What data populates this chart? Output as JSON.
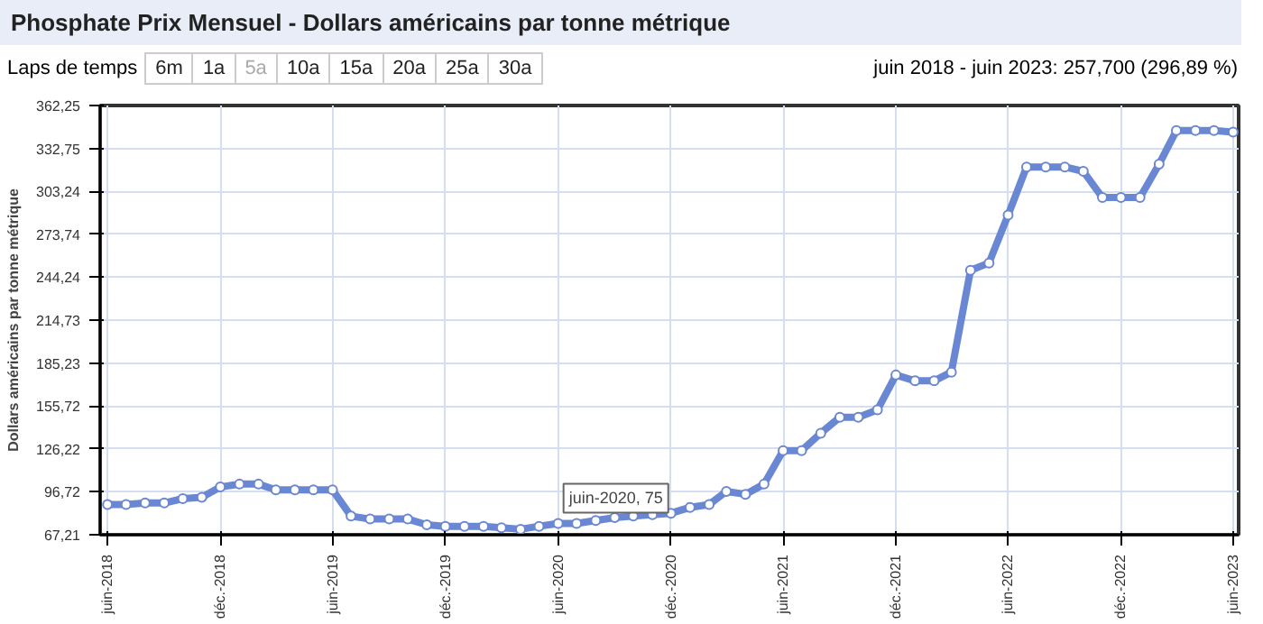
{
  "chart_data": {
    "type": "line",
    "title": "Phosphate Prix Mensuel - Dollars américains par tonne métrique",
    "ylabel": "Dollars américains par tonne métrique",
    "annotations": [
      "Laps de temps",
      "6m",
      "1a",
      "5a",
      "10a",
      "15a",
      "20a",
      "25a",
      "30a",
      "juin 2018 - juin 2023: 257,700 (296,89 %)",
      {
        "text": "juin-2020, 75",
        "x": "2020-06",
        "y": 75
      }
    ],
    "x": [
      "2018-06",
      "2018-07",
      "2018-08",
      "2018-09",
      "2018-10",
      "2018-11",
      "2018-12",
      "2019-01",
      "2019-02",
      "2019-03",
      "2019-04",
      "2019-05",
      "2019-06",
      "2019-07",
      "2019-08",
      "2019-09",
      "2019-10",
      "2019-11",
      "2019-12",
      "2020-01",
      "2020-02",
      "2020-03",
      "2020-04",
      "2020-05",
      "2020-06",
      "2020-07",
      "2020-08",
      "2020-09",
      "2020-10",
      "2020-11",
      "2020-12",
      "2021-01",
      "2021-02",
      "2021-03",
      "2021-04",
      "2021-05",
      "2021-06",
      "2021-07",
      "2021-08",
      "2021-09",
      "2021-10",
      "2021-11",
      "2021-12",
      "2022-01",
      "2022-02",
      "2022-03",
      "2022-04",
      "2022-05",
      "2022-06",
      "2022-07",
      "2022-08",
      "2022-09",
      "2022-10",
      "2022-11",
      "2022-12",
      "2023-01",
      "2023-02",
      "2023-03",
      "2023-04",
      "2023-05",
      "2023-06"
    ],
    "series": [
      {
        "color": "#6a87d3",
        "values": [
          88,
          88,
          89,
          89,
          92,
          93,
          100,
          102,
          102,
          98,
          98,
          98,
          98,
          80,
          78,
          78,
          78,
          74,
          73,
          73,
          73,
          72,
          71,
          73,
          75,
          75,
          77,
          79,
          80,
          81,
          82,
          86,
          88,
          97,
          95,
          102,
          125,
          125,
          137,
          148,
          148,
          153,
          177,
          173,
          173,
          179,
          249,
          254,
          287,
          320,
          320,
          320,
          317,
          299,
          299,
          299,
          322,
          345,
          345,
          345,
          344
        ]
      }
    ],
    "marker": "circle",
    "line_style": "solid",
    "grid": true,
    "xlim": [
      "2018-05-20",
      "2023-06-10"
    ],
    "ylim": [
      67.21,
      362.25
    ],
    "yticks": [
      {
        "value": 67.21,
        "label": "67,21"
      },
      {
        "value": 96.72,
        "label": "96,72"
      },
      {
        "value": 126.22,
        "label": "126,22"
      },
      {
        "value": 155.72,
        "label": "155,72"
      },
      {
        "value": 185.23,
        "label": "185,23"
      },
      {
        "value": 214.73,
        "label": "214,73"
      },
      {
        "value": 244.24,
        "label": "244,24"
      },
      {
        "value": 273.74,
        "label": "273,74"
      },
      {
        "value": 303.24,
        "label": "303,24"
      },
      {
        "value": 332.75,
        "label": "332,75"
      },
      {
        "value": 362.25,
        "label": "362,25"
      }
    ],
    "xticks": [
      {
        "value": "2018-06",
        "label": "juin-2018"
      },
      {
        "value": "2018-12",
        "label": "déc.-2018"
      },
      {
        "value": "2019-06",
        "label": "juin-2019"
      },
      {
        "value": "2019-12",
        "label": "déc.-2019"
      },
      {
        "value": "2020-06",
        "label": "juin-2020"
      },
      {
        "value": "2020-12",
        "label": "déc.-2020"
      },
      {
        "value": "2021-06",
        "label": "juin-2021"
      },
      {
        "value": "2021-12",
        "label": "déc.-2021"
      },
      {
        "value": "2022-06",
        "label": "juin-2022"
      },
      {
        "value": "2022-12",
        "label": "déc.-2022"
      },
      {
        "value": "2023-06",
        "label": "juin-2023"
      }
    ]
  }
}
